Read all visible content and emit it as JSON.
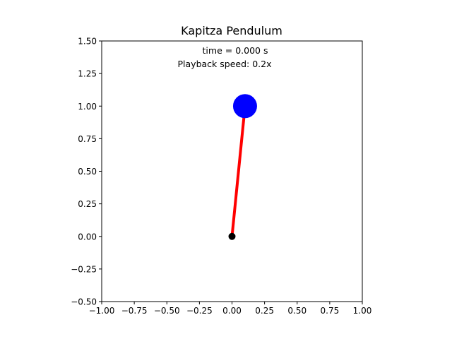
{
  "chart_data": {
    "type": "scatter",
    "title": "Kapitza Pendulum",
    "xlabel": "",
    "ylabel": "",
    "xlim": [
      -1.0,
      1.0
    ],
    "ylim": [
      -0.5,
      1.5
    ],
    "x_ticks": [
      -1.0,
      -0.75,
      -0.5,
      -0.25,
      0.0,
      0.25,
      0.5,
      0.75,
      1.0
    ],
    "x_tick_labels": [
      "−1.00",
      "−0.75",
      "−0.50",
      "−0.25",
      "0.00",
      "0.25",
      "0.50",
      "0.75",
      "1.00"
    ],
    "y_ticks": [
      -0.5,
      -0.25,
      0.0,
      0.25,
      0.5,
      0.75,
      1.0,
      1.25,
      1.5
    ],
    "y_tick_labels": [
      "−0.50",
      "−0.25",
      "0.00",
      "0.25",
      "0.50",
      "0.75",
      "1.00",
      "1.25",
      "1.50"
    ],
    "grid": false,
    "pivot": {
      "x": 0.0,
      "y": 0.0,
      "color": "#000000"
    },
    "bob": {
      "x": 0.1,
      "y": 1.0,
      "color": "#0000ff"
    },
    "rod": {
      "x": [
        0.0,
        0.1
      ],
      "y": [
        0.0,
        1.0
      ],
      "color": "#ff0000"
    },
    "annotations": [
      "time = 0.000 s",
      "Playback speed: 0.2x"
    ]
  }
}
